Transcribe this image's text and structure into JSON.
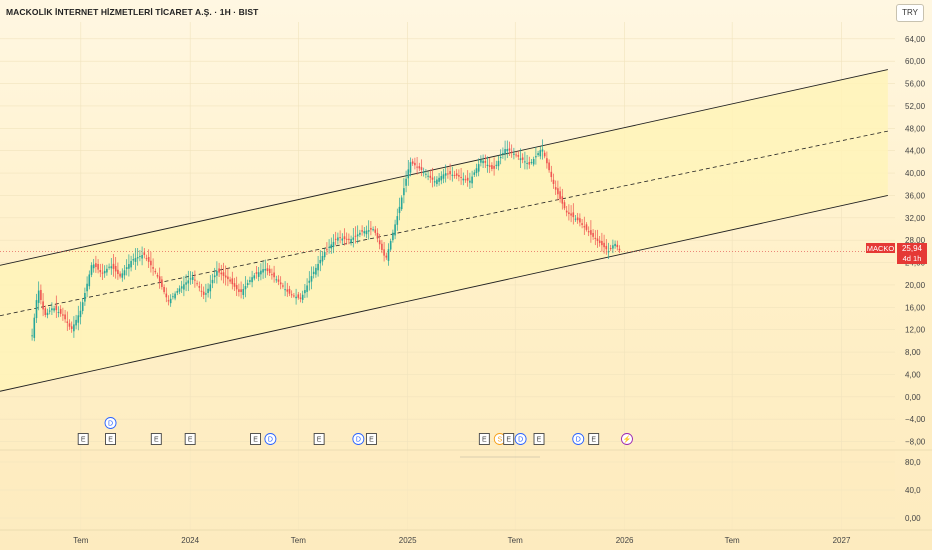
{
  "header": {
    "title": "MACKOLİK İNTERNET HİZMETLERİ TİCARET A.Ş. · 1H · BIST",
    "currency": "TRY"
  },
  "price_label": {
    "symbol": "MACKO",
    "price": "25,94",
    "countdown": "4d 1h"
  },
  "colors": {
    "up": "#26a69a",
    "down": "#ef5350",
    "channel_fill": "#fff3b8",
    "channel_line": "#222222",
    "price_line": "#e04848",
    "dividend_event": "#2962ff",
    "earnings_event": "#444444",
    "split_event": "#f7a21b",
    "flash_event": "#9c27b0"
  },
  "chart_data": {
    "type": "candlestick",
    "ylim": [
      -9.5,
      67
    ],
    "y_ticks": [
      "64,00",
      "60,00",
      "56,00",
      "52,00",
      "48,00",
      "44,00",
      "40,00",
      "36,00",
      "32,00",
      "28,00",
      "24,00",
      "20,00",
      "16,00",
      "12,00",
      "8,00",
      "4,00",
      "0,00",
      "−4,00",
      "−8,00"
    ],
    "y_tick_values": [
      64,
      60,
      56,
      52,
      48,
      44,
      40,
      36,
      32,
      28,
      24,
      20,
      16,
      12,
      8,
      4,
      0,
      -4,
      -8
    ],
    "x_ticks": [
      "Tem",
      "2024",
      "Tem",
      "2025",
      "Tem",
      "2026",
      "Tem",
      "2027"
    ],
    "x_tick_dates": [
      "2023-07-01",
      "2024-01-01",
      "2024-07-01",
      "2025-01-01",
      "2025-07-01",
      "2026-01-01",
      "2026-07-01",
      "2027-01-01"
    ],
    "xlim": [
      "2023-02-15",
      "2027-04-01"
    ],
    "last_price": 25.94,
    "close_series": {
      "dates": [
        "2023-04-10",
        "2023-04-20",
        "2023-05-01",
        "2023-05-15",
        "2023-06-01",
        "2023-06-15",
        "2023-07-01",
        "2023-07-20",
        "2023-08-05",
        "2023-08-20",
        "2023-09-05",
        "2023-09-25",
        "2023-10-15",
        "2023-11-05",
        "2023-11-25",
        "2023-12-15",
        "2024-01-05",
        "2024-01-25",
        "2024-02-15",
        "2024-03-05",
        "2024-03-25",
        "2024-04-15",
        "2024-05-05",
        "2024-05-25",
        "2024-06-15",
        "2024-07-05",
        "2024-07-25",
        "2024-08-15",
        "2024-09-05",
        "2024-09-25",
        "2024-10-15",
        "2024-11-05",
        "2024-11-25",
        "2024-12-15",
        "2025-01-05",
        "2025-01-25",
        "2025-02-15",
        "2025-03-05",
        "2025-03-25",
        "2025-04-15",
        "2025-05-05",
        "2025-05-25",
        "2025-06-15",
        "2025-07-05",
        "2025-07-25",
        "2025-08-15",
        "2025-09-05",
        "2025-09-25",
        "2025-10-15",
        "2025-11-05",
        "2025-11-25",
        "2025-12-05",
        "2025-12-15",
        "2025-12-25"
      ],
      "values": [
        11.0,
        19.5,
        14.5,
        16.0,
        14.5,
        12.0,
        15.5,
        24.0,
        22.0,
        23.5,
        21.5,
        24.5,
        25.5,
        22.0,
        17.0,
        19.5,
        21.5,
        18.0,
        22.5,
        21.0,
        18.5,
        21.5,
        23.0,
        21.0,
        18.5,
        17.5,
        22.0,
        26.0,
        28.5,
        28.0,
        29.5,
        30.0,
        24.5,
        32.5,
        42.0,
        40.5,
        38.5,
        40.0,
        39.5,
        38.5,
        42.5,
        40.5,
        44.5,
        43.0,
        41.5,
        44.5,
        37.5,
        33.0,
        31.5,
        29.0,
        27.0,
        26.0,
        27.5,
        25.94
      ]
    },
    "channel": {
      "upper": {
        "start": [
          "2023-02-15",
          23.5
        ],
        "end": [
          "2027-03-20",
          58.5
        ]
      },
      "middle": {
        "start": [
          "2023-02-15",
          14.5
        ],
        "end": [
          "2027-03-20",
          47.5
        ]
      },
      "lower": {
        "start": [
          "2023-02-15",
          1.0
        ],
        "end": [
          "2027-03-20",
          36.0
        ]
      }
    },
    "events": [
      {
        "type": "D",
        "date": "2023-08-20",
        "row": 0
      },
      {
        "type": "E",
        "date": "2023-07-05",
        "row": 1
      },
      {
        "type": "E",
        "date": "2023-08-20",
        "row": 1
      },
      {
        "type": "E",
        "date": "2023-11-05",
        "row": 1
      },
      {
        "type": "E",
        "date": "2024-01-01",
        "row": 1
      },
      {
        "type": "E",
        "date": "2024-04-20",
        "row": 1
      },
      {
        "type": "D",
        "date": "2024-05-15",
        "row": 1
      },
      {
        "type": "E",
        "date": "2024-08-05",
        "row": 1
      },
      {
        "type": "D",
        "date": "2024-10-10",
        "row": 1
      },
      {
        "type": "E",
        "date": "2024-11-01",
        "row": 1
      },
      {
        "type": "E",
        "date": "2025-05-10",
        "row": 1
      },
      {
        "type": "S",
        "date": "2025-06-05",
        "row": 1
      },
      {
        "type": "E",
        "date": "2025-06-20",
        "row": 1
      },
      {
        "type": "D",
        "date": "2025-07-10",
        "row": 1
      },
      {
        "type": "E",
        "date": "2025-08-10",
        "row": 1
      },
      {
        "type": "D",
        "date": "2025-10-15",
        "row": 1
      },
      {
        "type": "E",
        "date": "2025-11-10",
        "row": 1
      },
      {
        "type": "F",
        "date": "2026-01-05",
        "row": 1
      }
    ],
    "indicator_pane": {
      "y_ticks": [
        "80,0",
        "40,0",
        "0,00"
      ],
      "y_tick_values": [
        80,
        40,
        0
      ],
      "ylim": [
        -10,
        90
      ]
    }
  }
}
